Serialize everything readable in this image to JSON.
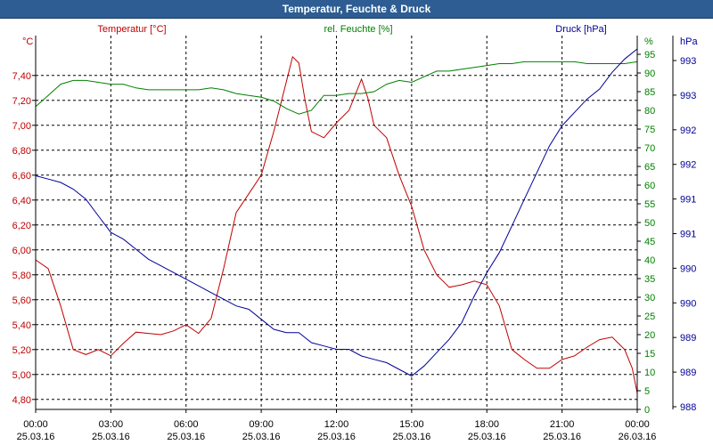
{
  "window": {
    "title": "Temperatur, Feuchte & Druck"
  },
  "chart_data": {
    "type": "line",
    "title": "Temperatur, Feuchte & Druck",
    "x_ticks": [
      {
        "time": "00:00",
        "date": "25.03.16"
      },
      {
        "time": "03:00",
        "date": "25.03.16"
      },
      {
        "time": "06:00",
        "date": "25.03.16"
      },
      {
        "time": "09:00",
        "date": "25.03.16"
      },
      {
        "time": "12:00",
        "date": "25.03.16"
      },
      {
        "time": "15:00",
        "date": "25.03.16"
      },
      {
        "time": "18:00",
        "date": "25.03.16"
      },
      {
        "time": "21:00",
        "date": "25.03.16"
      },
      {
        "time": "00:00",
        "date": "26.03.16"
      }
    ],
    "xlim_hours": [
      0,
      24
    ],
    "grid": true,
    "axes": {
      "temperature": {
        "label": "Temperatur [°C]",
        "unit": "°C",
        "color": "#c00000",
        "ylim": [
          4.72,
          7.72
        ],
        "ticks": [
          "4,80",
          "5,00",
          "5,20",
          "5,40",
          "5,60",
          "5,80",
          "6,00",
          "6,20",
          "6,40",
          "6,60",
          "6,80",
          "7,00",
          "7,20",
          "7,40"
        ],
        "tick_values": [
          4.8,
          5.0,
          5.2,
          5.4,
          5.6,
          5.8,
          6.0,
          6.2,
          6.4,
          6.6,
          6.8,
          7.0,
          7.2,
          7.4
        ]
      },
      "humidity": {
        "label": "rel. Feuchte [%]",
        "unit": "%",
        "color": "#008000",
        "ylim": [
          0,
          100
        ],
        "ticks": [
          "0",
          "5",
          "10",
          "15",
          "20",
          "25",
          "30",
          "35",
          "40",
          "45",
          "50",
          "55",
          "60",
          "65",
          "70",
          "75",
          "80",
          "85",
          "90",
          "95"
        ]
      },
      "pressure": {
        "label": "Druck [hPa]",
        "unit": "hPa",
        "color": "#000099",
        "ylim": [
          987.8,
          993.4
        ],
        "ticks": [
          "988",
          "989",
          "989",
          "990",
          "990",
          "991",
          "991",
          "992",
          "992",
          "993",
          "993"
        ]
      }
    },
    "series": [
      {
        "name": "Temperatur [°C]",
        "axis": "temperature",
        "color": "#c00000",
        "x": [
          0,
          0.5,
          1,
          1.5,
          2,
          2.5,
          3,
          3.5,
          4,
          4.5,
          5,
          5.5,
          6,
          6.5,
          7,
          7.5,
          8,
          8.5,
          9,
          9.5,
          10,
          10.25,
          10.5,
          10.75,
          11,
          11.5,
          12,
          12.5,
          13,
          13.25,
          13.5,
          14,
          14.5,
          15,
          15.5,
          16,
          16.5,
          17,
          17.5,
          18,
          18.5,
          19,
          19.5,
          20,
          20.5,
          21,
          21.5,
          22,
          22.5,
          23,
          23.5,
          23.8,
          24
        ],
        "values": [
          5.92,
          5.85,
          5.55,
          5.2,
          5.16,
          5.2,
          5.15,
          5.25,
          5.34,
          5.33,
          5.32,
          5.35,
          5.4,
          5.33,
          5.45,
          5.85,
          6.3,
          6.45,
          6.6,
          6.95,
          7.35,
          7.55,
          7.5,
          7.2,
          6.95,
          6.9,
          7.02,
          7.12,
          7.37,
          7.22,
          7.0,
          6.9,
          6.6,
          6.35,
          6.0,
          5.8,
          5.7,
          5.72,
          5.75,
          5.72,
          5.55,
          5.2,
          5.12,
          5.05,
          5.05,
          5.12,
          5.15,
          5.22,
          5.28,
          5.3,
          5.2,
          5.05,
          4.85
        ]
      },
      {
        "name": "rel. Feuchte [%]",
        "axis": "humidity",
        "color": "#008000",
        "x": [
          0,
          0.5,
          1,
          1.5,
          2,
          2.5,
          3,
          3.5,
          4,
          4.5,
          5,
          5.5,
          6,
          6.5,
          7,
          7.5,
          8,
          8.5,
          9,
          9.5,
          10,
          10.5,
          11,
          11.5,
          12,
          12.5,
          13,
          13.5,
          14,
          14.5,
          15,
          15.5,
          16,
          16.5,
          17,
          17.5,
          18,
          18.5,
          19,
          19.5,
          20,
          20.5,
          21,
          21.5,
          22,
          22.5,
          23,
          23.5,
          24
        ],
        "values": [
          81,
          84,
          87,
          88,
          88,
          87.5,
          87,
          87,
          86,
          85.5,
          85.5,
          85.5,
          85.5,
          85.5,
          86,
          85.5,
          84.5,
          84,
          83.5,
          82.5,
          80.5,
          79,
          80,
          84,
          84,
          84.5,
          84.5,
          85,
          87,
          88,
          87.5,
          89,
          90.5,
          90.5,
          91,
          91.5,
          92,
          92.5,
          92.5,
          93,
          93,
          93,
          93,
          93,
          92.5,
          92.5,
          92.5,
          92.5,
          93
        ]
      },
      {
        "name": "Druck [hPa]",
        "axis": "pressure",
        "color": "#000099",
        "x": [
          0,
          0.5,
          1,
          1.5,
          2,
          2.5,
          3,
          3.5,
          4,
          4.5,
          5,
          5.5,
          6,
          6.5,
          7,
          7.5,
          8,
          8.5,
          9,
          9.5,
          10,
          10.5,
          11,
          11.5,
          12,
          12.5,
          13,
          13.5,
          14,
          14.5,
          15,
          15.5,
          16,
          16.5,
          17,
          17.5,
          18,
          18.5,
          19,
          19.5,
          20,
          20.5,
          21,
          21.5,
          22,
          22.5,
          23,
          23.5,
          24
        ],
        "values": [
          991.3,
          991.25,
          991.2,
          991.1,
          990.95,
          990.7,
          990.45,
          990.35,
          990.2,
          990.05,
          989.95,
          989.85,
          989.75,
          989.65,
          989.55,
          989.45,
          989.35,
          989.3,
          989.15,
          989.0,
          988.95,
          988.95,
          988.8,
          988.75,
          988.7,
          988.7,
          988.6,
          988.55,
          988.5,
          988.4,
          988.3,
          988.45,
          988.65,
          988.85,
          989.1,
          989.5,
          989.85,
          990.15,
          990.55,
          990.95,
          991.35,
          991.75,
          992.05,
          992.25,
          992.45,
          992.6,
          992.85,
          993.05,
          993.2
        ]
      }
    ]
  }
}
